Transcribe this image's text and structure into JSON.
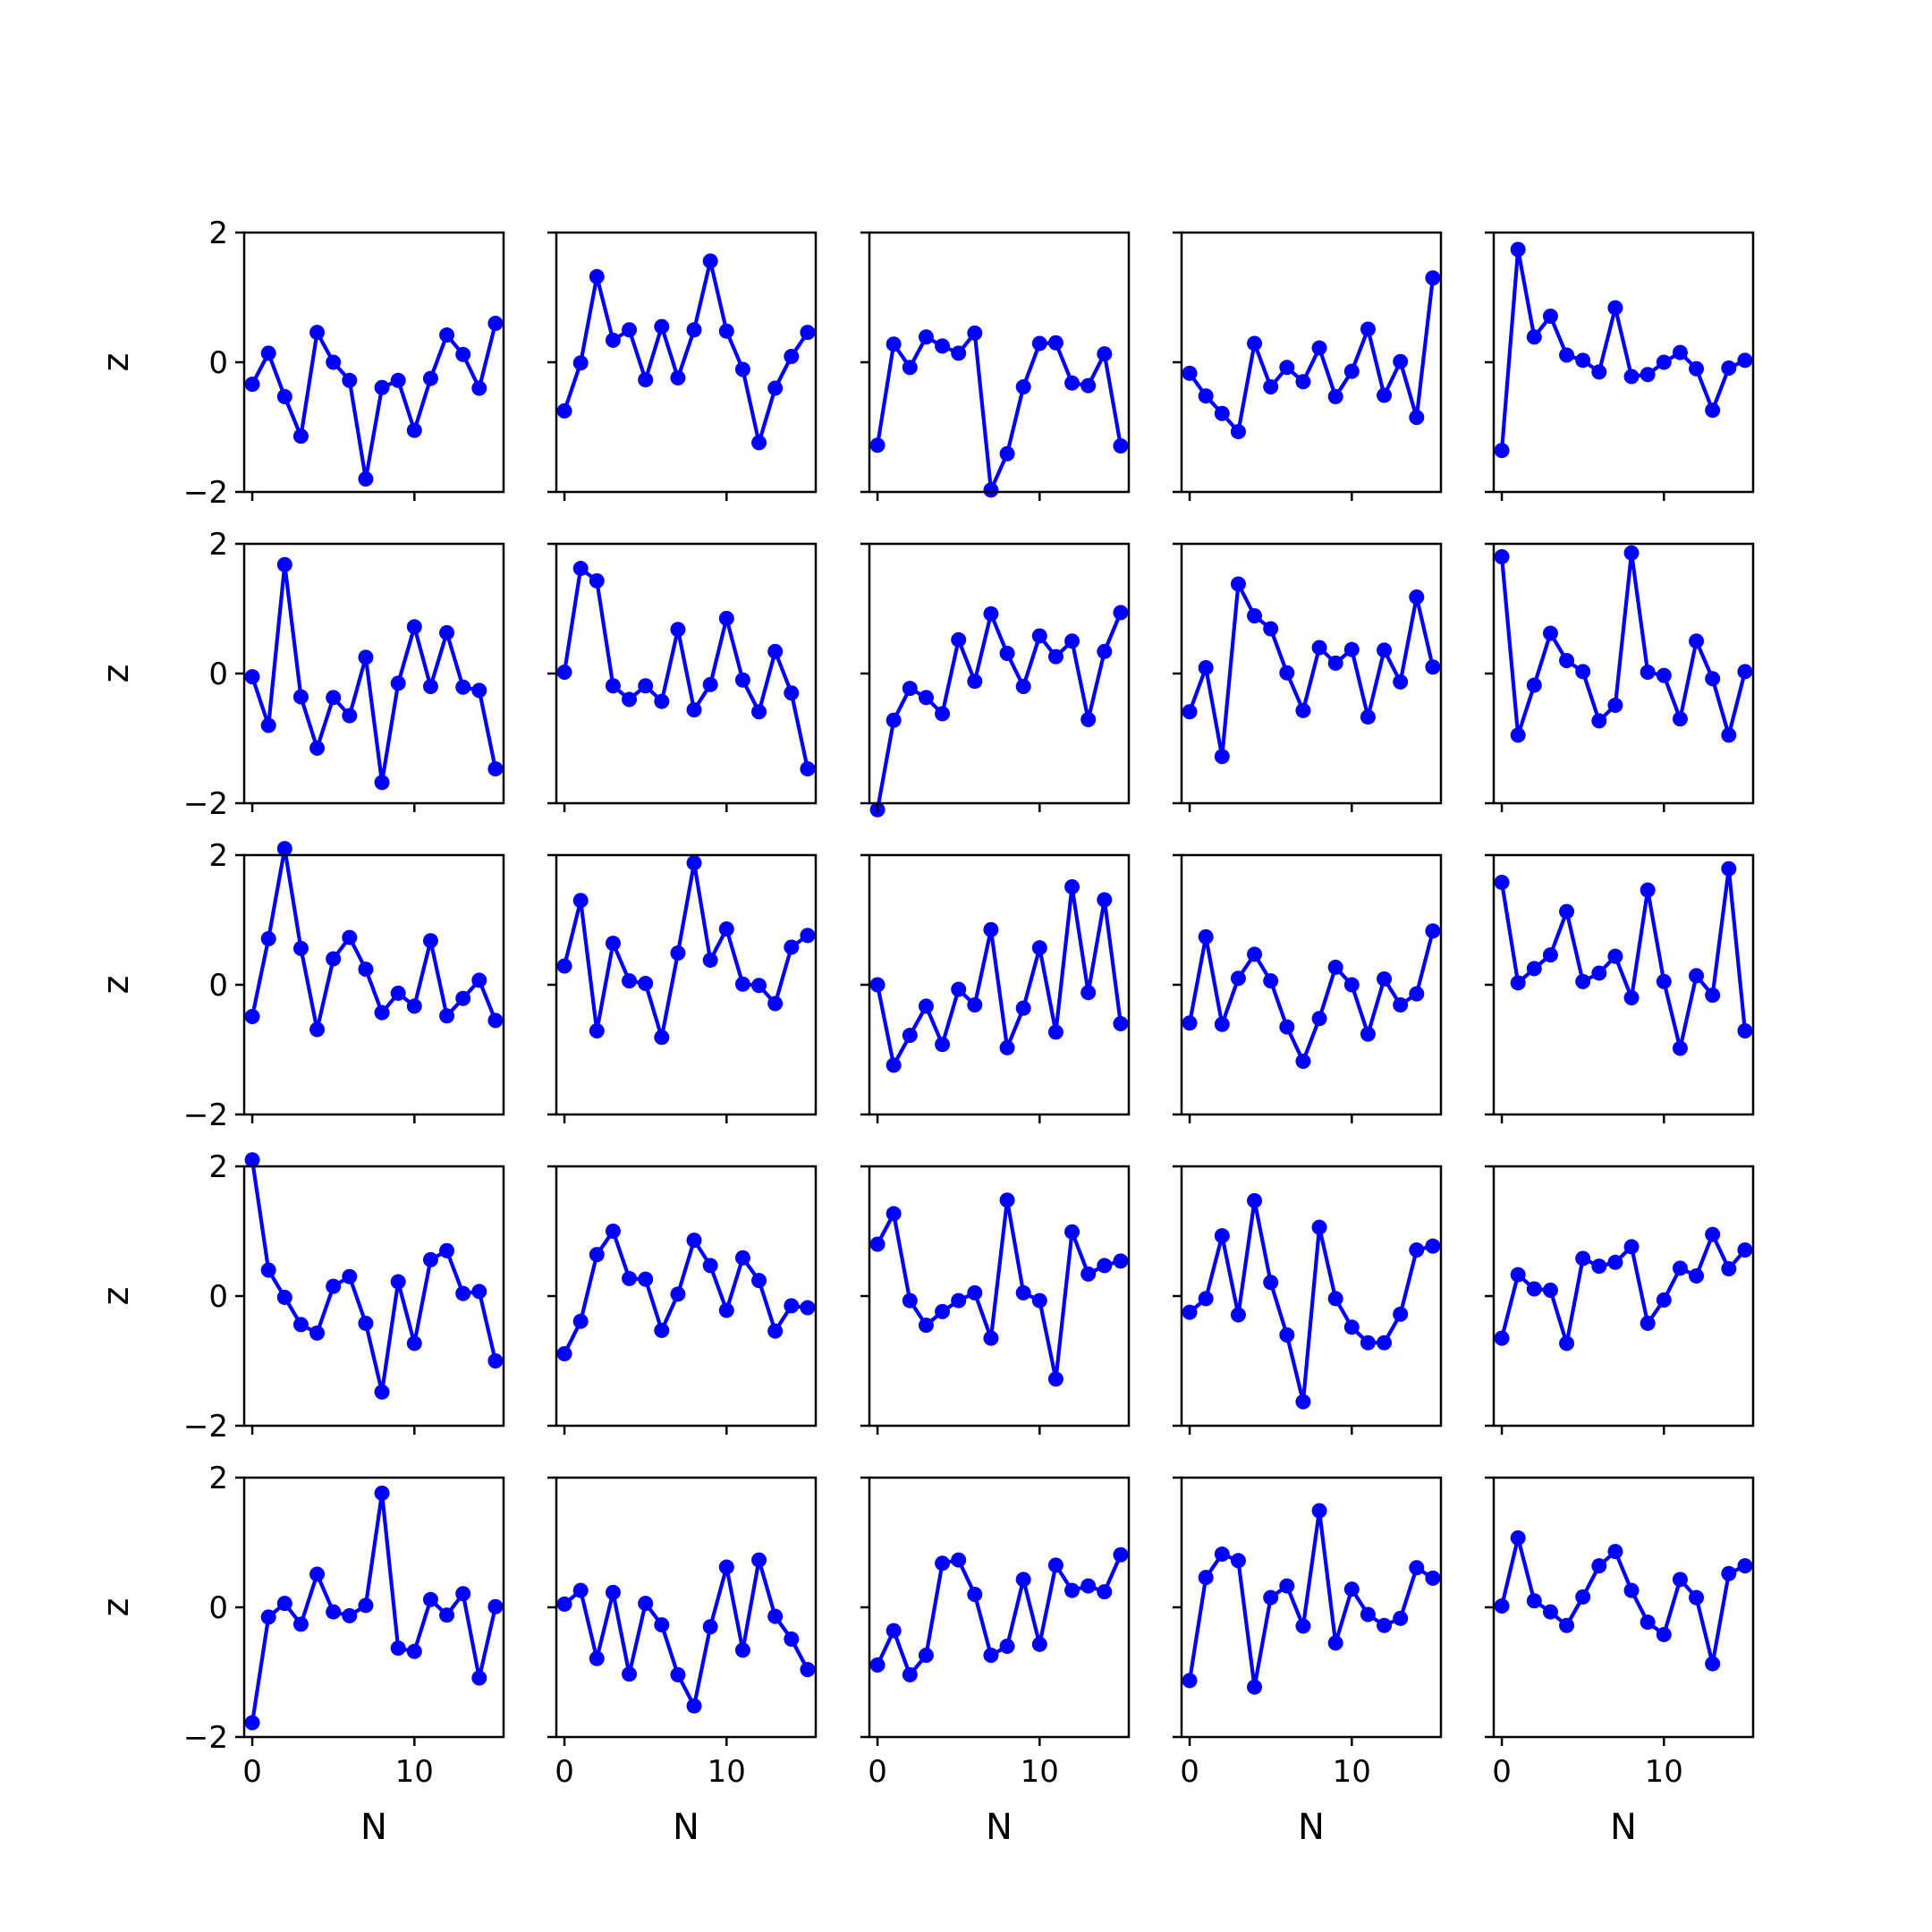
{
  "chart_data": {
    "type": "line",
    "layout": {
      "rows": 5,
      "cols": 5
    },
    "x": [
      0,
      1,
      2,
      3,
      4,
      5,
      6,
      7,
      8,
      9,
      10,
      11,
      12,
      13,
      14,
      15
    ],
    "xlim": [
      -0.5,
      15.5
    ],
    "ylim": [
      -2,
      2
    ],
    "xticks": [
      0,
      10
    ],
    "yticks": [
      -2,
      0,
      2
    ],
    "xticklabels": [
      "0",
      "10"
    ],
    "yticklabels": [
      "−2",
      "0",
      "2"
    ],
    "xlabel": "N",
    "ylabel": "z",
    "line_color": "#0000ff",
    "marker": "circle",
    "grid": false,
    "legend": "none",
    "panels": [
      {
        "row": 0,
        "col": 0,
        "values": [
          -0.34,
          0.14,
          -0.53,
          -1.14,
          0.46,
          0.0,
          -0.28,
          -1.8,
          -0.39,
          -0.28,
          -1.05,
          -0.25,
          0.42,
          0.12,
          -0.4,
          0.6
        ]
      },
      {
        "row": 0,
        "col": 1,
        "values": [
          -0.75,
          -0.01,
          1.32,
          0.34,
          0.5,
          -0.27,
          0.55,
          -0.24,
          0.5,
          1.56,
          0.48,
          -0.11,
          -1.24,
          -0.4,
          0.09,
          0.46
        ]
      },
      {
        "row": 0,
        "col": 2,
        "values": [
          -1.28,
          0.28,
          -0.08,
          0.39,
          0.25,
          0.14,
          0.45,
          -1.97,
          -1.41,
          -0.38,
          0.29,
          0.3,
          -0.32,
          -0.36,
          0.13,
          -1.29
        ]
      },
      {
        "row": 0,
        "col": 3,
        "values": [
          -0.17,
          -0.52,
          -0.79,
          -1.07,
          0.29,
          -0.38,
          -0.08,
          -0.3,
          0.22,
          -0.53,
          -0.14,
          0.51,
          -0.51,
          0.01,
          -0.85,
          1.3
        ]
      },
      {
        "row": 0,
        "col": 4,
        "values": [
          -1.36,
          1.74,
          0.39,
          0.71,
          0.11,
          0.03,
          -0.15,
          0.84,
          -0.22,
          -0.19,
          0.0,
          0.15,
          -0.1,
          -0.74,
          -0.09,
          0.03
        ]
      },
      {
        "row": 1,
        "col": 0,
        "values": [
          -0.05,
          -0.8,
          1.68,
          -0.36,
          -1.15,
          -0.37,
          -0.65,
          0.25,
          -1.68,
          -0.15,
          0.72,
          -0.2,
          0.63,
          -0.21,
          -0.26,
          -1.47
        ]
      },
      {
        "row": 1,
        "col": 1,
        "values": [
          0.02,
          1.62,
          1.43,
          -0.19,
          -0.4,
          -0.19,
          -0.43,
          0.68,
          -0.56,
          -0.17,
          0.85,
          -0.1,
          -0.59,
          0.34,
          -0.3,
          -1.47
        ]
      },
      {
        "row": 1,
        "col": 2,
        "values": [
          -2.1,
          -0.72,
          -0.23,
          -0.37,
          -0.62,
          0.52,
          -0.12,
          0.92,
          0.31,
          -0.2,
          0.58,
          0.26,
          0.5,
          -0.71,
          0.34,
          0.94
        ]
      },
      {
        "row": 1,
        "col": 3,
        "values": [
          -0.59,
          0.09,
          -1.28,
          1.38,
          0.89,
          0.69,
          0.01,
          -0.57,
          0.4,
          0.16,
          0.37,
          -0.67,
          0.36,
          -0.13,
          1.18,
          0.1
        ]
      },
      {
        "row": 1,
        "col": 4,
        "values": [
          1.8,
          -0.95,
          -0.18,
          0.62,
          0.2,
          0.03,
          -0.73,
          -0.49,
          1.86,
          0.02,
          -0.03,
          -0.7,
          0.5,
          -0.08,
          -0.95,
          0.03
        ]
      },
      {
        "row": 2,
        "col": 0,
        "values": [
          -0.49,
          0.71,
          2.1,
          0.56,
          -0.69,
          0.4,
          0.73,
          0.24,
          -0.43,
          -0.13,
          -0.33,
          0.68,
          -0.48,
          -0.21,
          0.07,
          -0.55
        ]
      },
      {
        "row": 2,
        "col": 1,
        "values": [
          0.29,
          1.3,
          -0.71,
          0.64,
          0.06,
          0.02,
          -0.81,
          0.49,
          1.88,
          0.38,
          0.86,
          0.01,
          -0.01,
          -0.29,
          0.58,
          0.76
        ]
      },
      {
        "row": 2,
        "col": 2,
        "values": [
          0.0,
          -1.24,
          -0.78,
          -0.33,
          -0.92,
          -0.07,
          -0.31,
          0.85,
          -0.97,
          -0.36,
          0.57,
          -0.73,
          1.51,
          -0.12,
          1.31,
          -0.6
        ]
      },
      {
        "row": 2,
        "col": 3,
        "values": [
          -0.59,
          0.74,
          -0.61,
          0.1,
          0.47,
          0.06,
          -0.65,
          -1.18,
          -0.52,
          0.27,
          0.0,
          -0.76,
          0.09,
          -0.31,
          -0.14,
          0.83
        ]
      },
      {
        "row": 2,
        "col": 4,
        "values": [
          1.58,
          0.03,
          0.25,
          0.46,
          1.13,
          0.05,
          0.18,
          0.44,
          -0.2,
          1.46,
          0.05,
          -0.98,
          0.14,
          -0.16,
          1.79,
          -0.71
        ]
      },
      {
        "row": 3,
        "col": 0,
        "values": [
          2.1,
          0.4,
          -0.02,
          -0.44,
          -0.57,
          0.15,
          0.3,
          -0.42,
          -1.48,
          0.22,
          -0.73,
          0.56,
          0.7,
          0.04,
          0.07,
          -1.0
        ]
      },
      {
        "row": 3,
        "col": 1,
        "values": [
          -0.89,
          -0.39,
          0.64,
          1.0,
          0.27,
          0.26,
          -0.53,
          0.03,
          0.86,
          0.47,
          -0.22,
          0.59,
          0.24,
          -0.54,
          -0.15,
          -0.18
        ]
      },
      {
        "row": 3,
        "col": 2,
        "values": [
          0.8,
          1.27,
          -0.07,
          -0.45,
          -0.24,
          -0.07,
          0.05,
          -0.65,
          1.48,
          0.05,
          -0.07,
          -1.28,
          0.99,
          0.34,
          0.47,
          0.54
        ]
      },
      {
        "row": 3,
        "col": 3,
        "values": [
          -0.25,
          -0.04,
          0.93,
          -0.29,
          1.47,
          0.21,
          -0.6,
          -1.63,
          1.06,
          -0.04,
          -0.48,
          -0.72,
          -0.72,
          -0.28,
          0.71,
          0.77
        ]
      },
      {
        "row": 3,
        "col": 4,
        "values": [
          -0.65,
          0.33,
          0.11,
          0.09,
          -0.73,
          0.58,
          0.46,
          0.52,
          0.76,
          -0.42,
          -0.06,
          0.43,
          0.31,
          0.95,
          0.42,
          0.71
        ]
      },
      {
        "row": 4,
        "col": 0,
        "values": [
          -1.78,
          -0.15,
          0.06,
          -0.26,
          0.51,
          -0.07,
          -0.13,
          0.03,
          1.76,
          -0.63,
          -0.68,
          0.12,
          -0.12,
          0.21,
          -1.09,
          0.01
        ]
      },
      {
        "row": 4,
        "col": 1,
        "values": [
          0.05,
          0.26,
          -0.79,
          0.23,
          -1.03,
          0.06,
          -0.27,
          -1.04,
          -1.52,
          -0.3,
          0.62,
          -0.66,
          0.73,
          -0.14,
          -0.49,
          -0.96
        ]
      },
      {
        "row": 4,
        "col": 2,
        "values": [
          -0.89,
          -0.36,
          -1.04,
          -0.74,
          0.68,
          0.73,
          0.2,
          -0.74,
          -0.6,
          0.43,
          -0.57,
          0.65,
          0.26,
          0.33,
          0.24,
          0.81
        ]
      },
      {
        "row": 4,
        "col": 3,
        "values": [
          -1.13,
          0.46,
          0.82,
          0.72,
          -1.23,
          0.15,
          0.33,
          -0.29,
          1.49,
          -0.55,
          0.28,
          -0.11,
          -0.28,
          -0.17,
          0.61,
          0.45
        ]
      },
      {
        "row": 4,
        "col": 4,
        "values": [
          0.02,
          1.07,
          0.1,
          -0.07,
          -0.28,
          0.16,
          0.64,
          0.86,
          0.26,
          -0.23,
          -0.42,
          0.43,
          0.15,
          -0.87,
          0.52,
          0.64
        ]
      }
    ]
  }
}
